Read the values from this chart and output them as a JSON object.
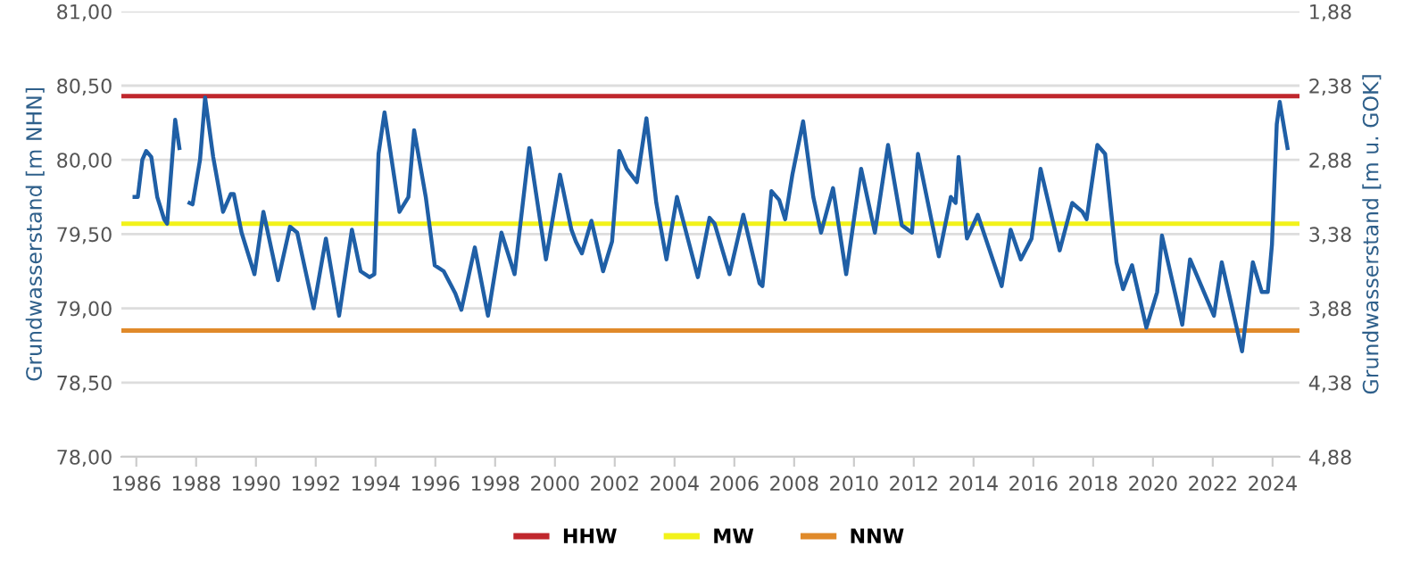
{
  "chart_data": {
    "type": "line",
    "ylabel": "Grundwasserstand [m NHN]",
    "y2label": "Grundwasserstand [m u. GOK]",
    "x": [
      1985.94,
      1986.05,
      1986.2,
      1986.33,
      1986.5,
      1986.7,
      1986.93,
      1987.03,
      1987.3,
      1987.44,
      1987.6,
      1987.78,
      1987.88,
      1988.13,
      1988.3,
      1988.57,
      1988.9,
      1989.16,
      1989.26,
      1989.52,
      1989.95,
      1990.25,
      1990.74,
      1991.14,
      1991.38,
      1991.93,
      1992.34,
      1992.78,
      1993.21,
      1993.5,
      1993.8,
      1993.96,
      1994.1,
      1994.3,
      1994.8,
      1995.1,
      1995.29,
      1995.68,
      1995.98,
      1996.28,
      1996.67,
      1996.87,
      1997.32,
      1997.76,
      1998.21,
      1998.65,
      1999.14,
      1999.7,
      2000.17,
      2000.55,
      2000.7,
      2000.9,
      2001.22,
      2001.61,
      2001.91,
      2002.15,
      2002.4,
      2002.74,
      2003.06,
      2003.39,
      2003.73,
      2004.08,
      2004.78,
      2005.17,
      2005.34,
      2005.84,
      2006.3,
      2006.84,
      2006.94,
      2007.24,
      2007.5,
      2007.7,
      2007.94,
      2008.3,
      2008.64,
      2008.9,
      2009.3,
      2009.74,
      2010.24,
      2010.7,
      2011.14,
      2011.6,
      2011.94,
      2012.14,
      2012.84,
      2013.24,
      2013.4,
      2013.5,
      2013.78,
      2014.14,
      2014.94,
      2015.24,
      2015.58,
      2015.94,
      2016.24,
      2016.88,
      2017.3,
      2017.64,
      2017.78,
      2018.14,
      2018.4,
      2018.78,
      2019.0,
      2019.3,
      2019.78,
      2020.14,
      2020.3,
      2020.98,
      2021.24,
      2022.04,
      2022.3,
      2022.98,
      2023.34,
      2023.64,
      2023.84,
      2023.98,
      2024.14,
      2024.24,
      2024.5
    ],
    "series": [
      {
        "color": "#1f5fa6",
        "values": [
          79.75,
          79.75,
          80.0,
          80.06,
          80.02,
          79.75,
          79.6,
          79.57,
          80.27,
          80.08,
          null,
          79.71,
          79.7,
          80.0,
          80.42,
          80.02,
          79.65,
          79.77,
          79.77,
          79.51,
          79.23,
          79.65,
          79.19,
          79.55,
          79.51,
          79.0,
          79.47,
          78.95,
          79.53,
          79.25,
          79.21,
          79.23,
          80.04,
          80.32,
          79.65,
          79.75,
          80.2,
          79.75,
          79.29,
          79.25,
          79.1,
          78.99,
          79.41,
          78.95,
          79.51,
          79.23,
          80.08,
          79.33,
          79.9,
          79.53,
          79.45,
          79.37,
          79.59,
          79.25,
          79.45,
          80.06,
          79.94,
          79.85,
          80.28,
          79.71,
          79.33,
          79.75,
          79.21,
          79.61,
          79.57,
          79.23,
          79.63,
          79.17,
          79.15,
          79.79,
          79.73,
          79.6,
          79.9,
          80.26,
          79.75,
          79.51,
          79.81,
          79.23,
          79.94,
          79.51,
          80.1,
          79.56,
          79.51,
          80.04,
          79.35,
          79.75,
          79.71,
          80.02,
          79.47,
          79.63,
          79.15,
          79.53,
          79.33,
          79.47,
          79.94,
          79.39,
          79.71,
          79.65,
          79.6,
          80.1,
          80.04,
          79.31,
          79.13,
          79.29,
          78.87,
          79.11,
          79.49,
          78.89,
          79.33,
          78.95,
          79.31,
          78.71,
          79.31,
          79.11,
          79.11,
          79.43,
          80.24,
          80.39,
          80.08
        ]
      }
    ],
    "xlim": [
      1985.5,
      2024.9
    ],
    "xticks": [
      1986,
      1988,
      1990,
      1992,
      1994,
      1996,
      1998,
      2000,
      2002,
      2004,
      2006,
      2008,
      2010,
      2012,
      2014,
      2016,
      2018,
      2020,
      2022,
      2024
    ],
    "ylim": [
      78,
      81
    ],
    "yticks": [
      {
        "value": 78,
        "label": "78,00"
      },
      {
        "value": 78.5,
        "label": "78,50"
      },
      {
        "value": 79,
        "label": "79,00"
      },
      {
        "value": 79.5,
        "label": "79,50"
      },
      {
        "value": 80,
        "label": "80,00"
      },
      {
        "value": 80.5,
        "label": "80,50"
      },
      {
        "value": 81,
        "label": "81,00"
      }
    ],
    "y2lim": [
      4.88,
      1.88
    ],
    "y2ticks": [
      {
        "value": 4.88,
        "label": "4,88"
      },
      {
        "value": 4.38,
        "label": "4,38"
      },
      {
        "value": 3.88,
        "label": "3,88"
      },
      {
        "value": 3.38,
        "label": "3,38"
      },
      {
        "value": 2.88,
        "label": "2,88"
      },
      {
        "value": 2.38,
        "label": "2,38"
      },
      {
        "value": 1.88,
        "label": "1,88"
      }
    ],
    "ref_lines": [
      {
        "axis": "y",
        "value": 80.43,
        "label": "HHW",
        "color": "#c0272d"
      },
      {
        "axis": "y",
        "value": 79.57,
        "label": "MW",
        "color": "#f2f21a"
      },
      {
        "axis": "y",
        "value": 78.85,
        "label": "NNW",
        "color": "#e08a2a"
      }
    ],
    "grid": "y",
    "legend": "bottom",
    "marker": "none",
    "line_style": "solid"
  }
}
